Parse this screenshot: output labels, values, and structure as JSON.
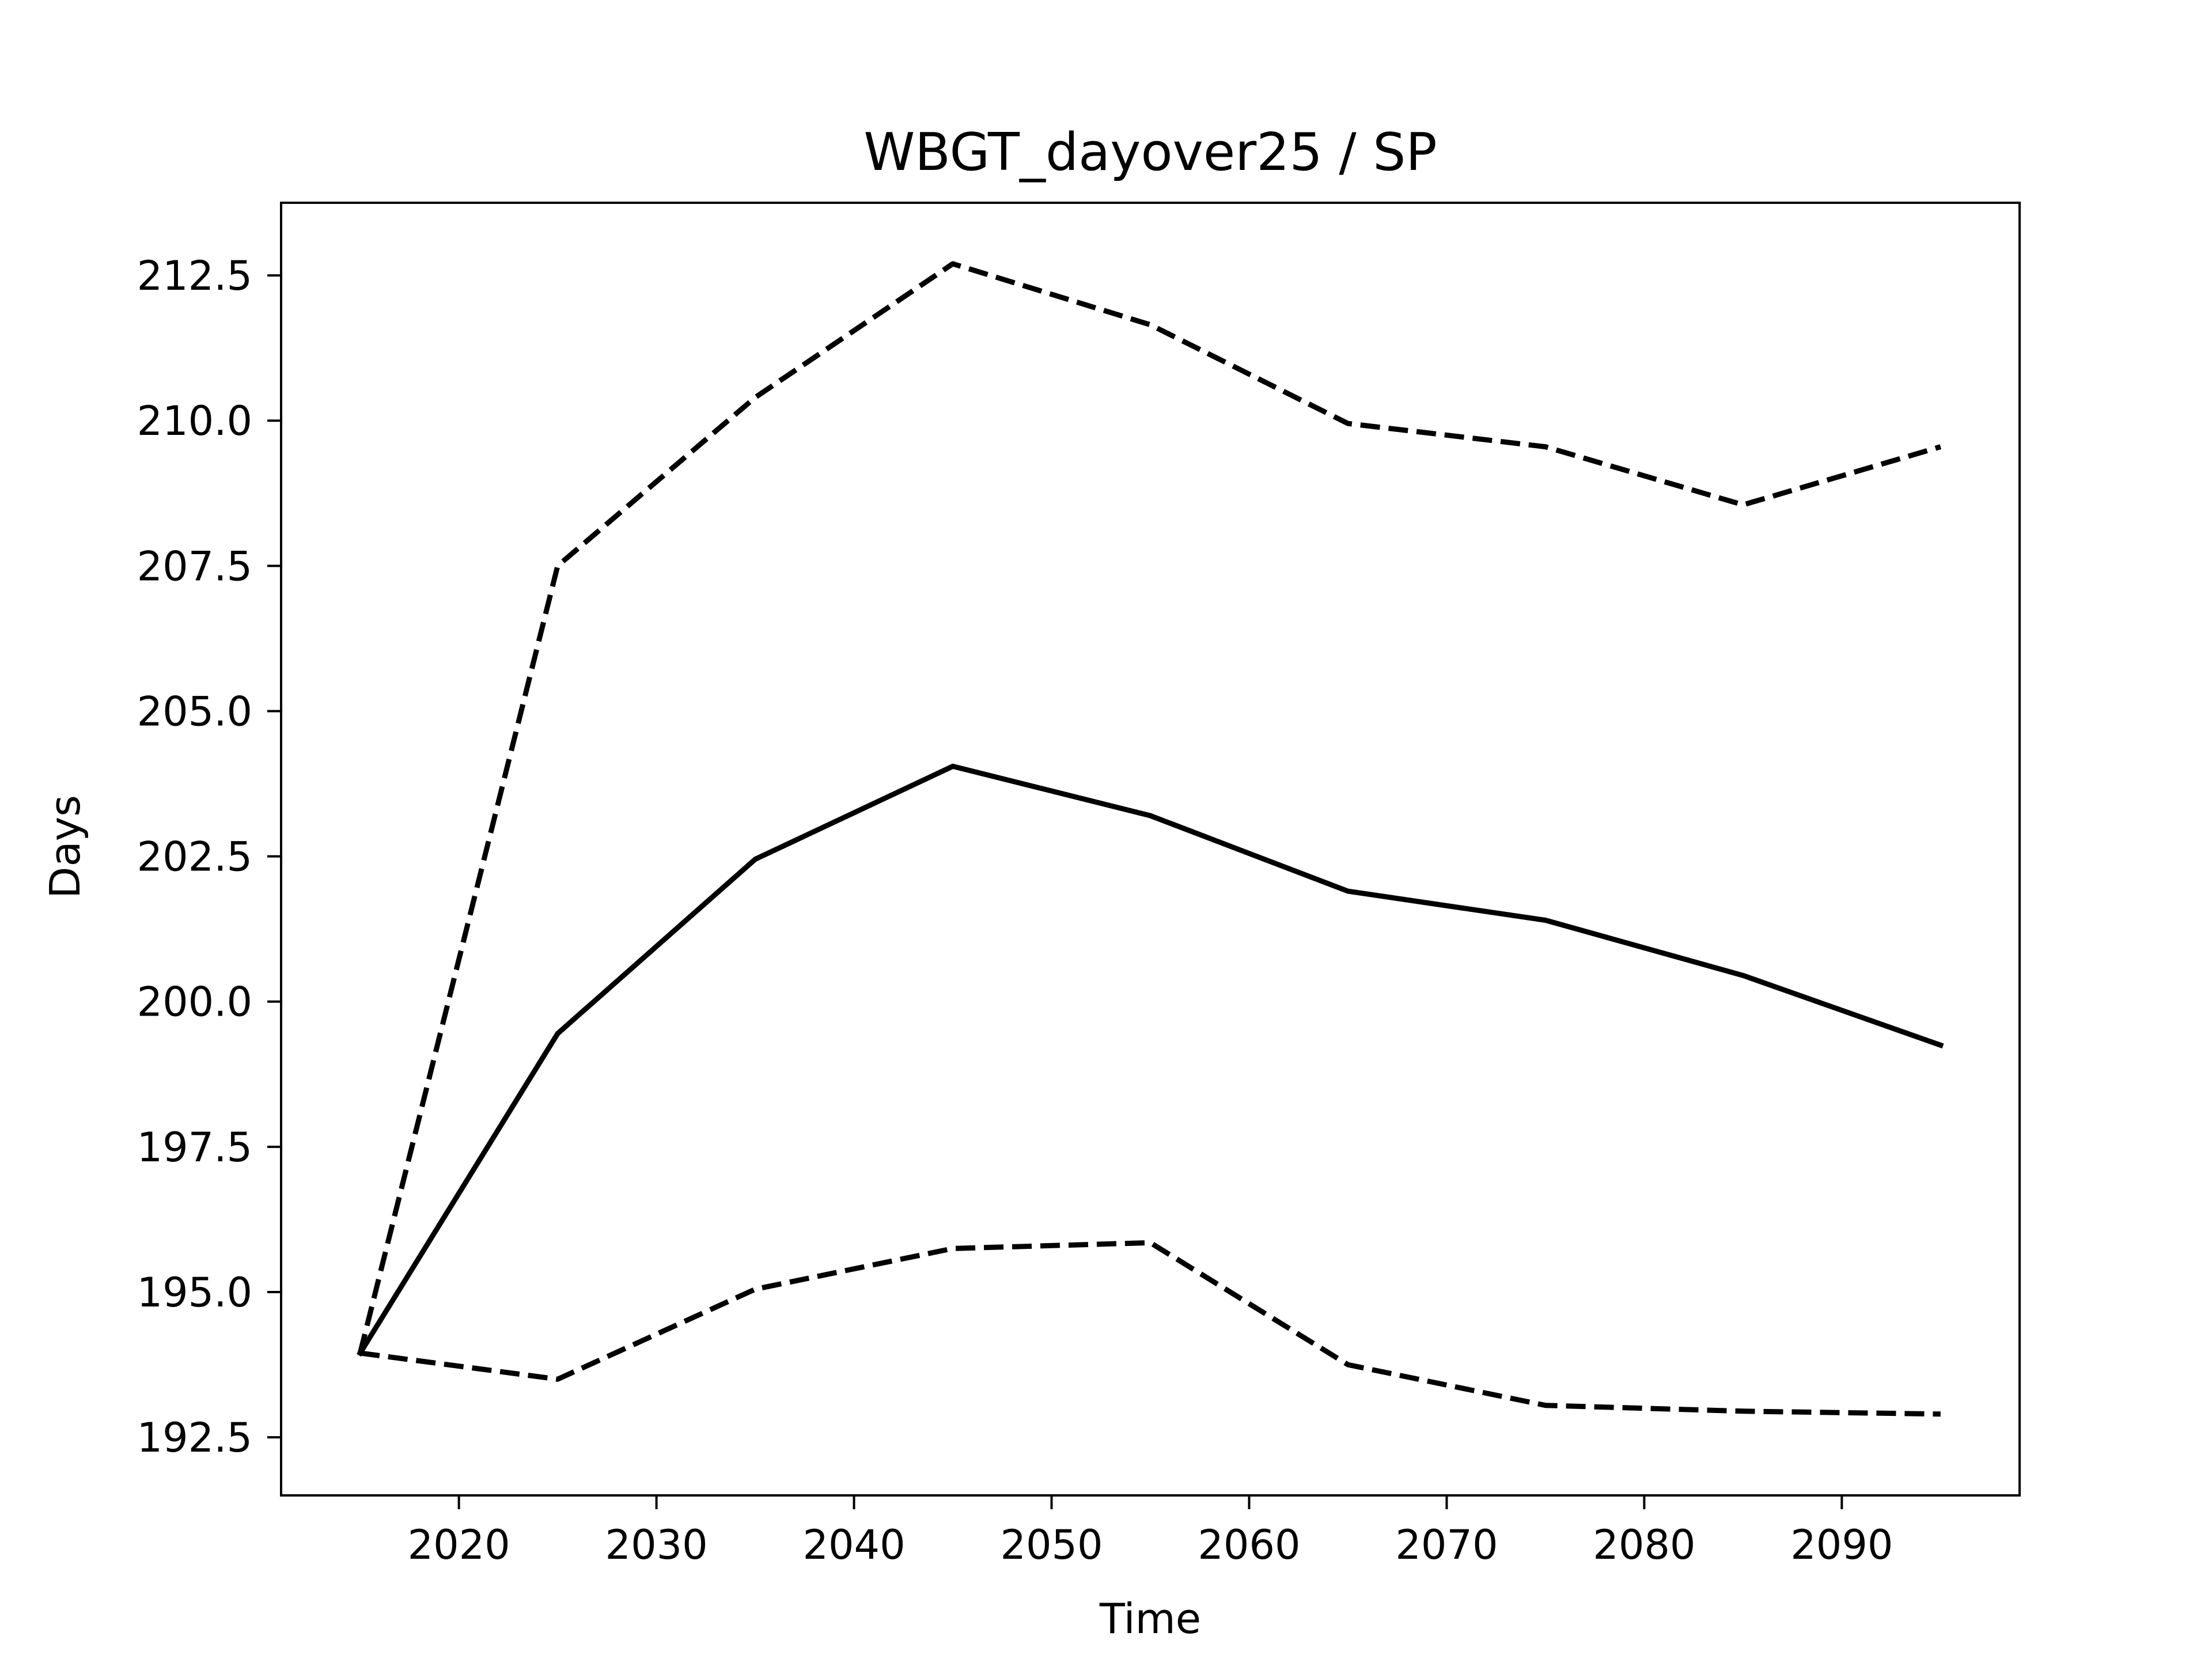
{
  "chart_data": {
    "type": "line",
    "title": "WBGT_dayover25 / SP",
    "xlabel": "Time",
    "ylabel": "Days",
    "xlim": [
      2011,
      2099
    ],
    "ylim": [
      191.5,
      213.75
    ],
    "x_ticks": [
      2020,
      2030,
      2040,
      2050,
      2060,
      2070,
      2080,
      2090
    ],
    "y_ticks": [
      192.5,
      195.0,
      197.5,
      200.0,
      202.5,
      205.0,
      207.5,
      210.0,
      212.5
    ],
    "grid": false,
    "legend": "none",
    "x": [
      2015,
      2025,
      2035,
      2045,
      2055,
      2065,
      2075,
      2085,
      2095
    ],
    "series": [
      {
        "style": "solid",
        "color": "#000000",
        "values": [
          193.95,
          199.45,
          202.45,
          204.05,
          203.2,
          201.9,
          201.4,
          200.45,
          199.25
        ]
      },
      {
        "style": "dashed",
        "color": "#000000",
        "values": [
          193.95,
          207.5,
          210.4,
          212.7,
          211.65,
          209.95,
          209.55,
          208.55,
          209.55
        ]
      },
      {
        "style": "dashed",
        "color": "#000000",
        "values": [
          193.95,
          193.5,
          195.05,
          195.75,
          195.85,
          193.75,
          193.05,
          192.95,
          192.9
        ]
      }
    ]
  }
}
